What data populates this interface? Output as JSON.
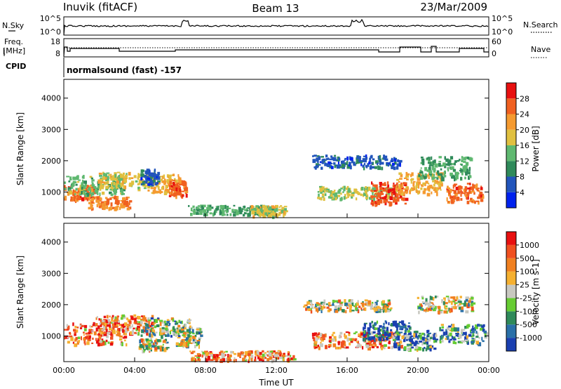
{
  "header": {
    "station": "Inuvik (fitACF)",
    "beam": "Beam 13",
    "date": "23/Mar/2009"
  },
  "top_panels": {
    "nsky_label": "N.Sky",
    "nsky_ticks": [
      "10^5",
      "10^0"
    ],
    "nsearch_label": "N.Search",
    "nsearch_ticks": [
      "10^5",
      "10^0"
    ],
    "freq_label_1": "Freq.",
    "freq_label_2": "[MHz]",
    "freq_ticks": [
      "18",
      "8"
    ],
    "nave_label": "Nave",
    "nave_ticks": [
      "60",
      "0"
    ],
    "cpid_label": "CPID",
    "cpid_text": "normalsound (fast) -157"
  },
  "chart_data": [
    {
      "type": "heatmap",
      "name": "power-panel",
      "xlabel": "",
      "ylabel": "Slant Range [km]",
      "x_ticks": [
        "00:00",
        "04:00",
        "08:00",
        "12:00",
        "16:00",
        "20:00",
        "00:00"
      ],
      "y_ticks": [
        1000,
        2000,
        3000,
        4000
      ],
      "ylim": [
        180,
        4600
      ],
      "colorbar": {
        "label": "Power [dB]",
        "ticks": [
          4,
          8,
          12,
          16,
          20,
          24,
          28
        ],
        "colors": [
          "#0022ee",
          "#2255bb",
          "#2f8a5a",
          "#5fb870",
          "#e0c040",
          "#f59a30",
          "#f06020",
          "#e81010"
        ]
      },
      "blobs": [
        {
          "t": 0.8,
          "r": 1000,
          "dt": 0.9,
          "dr": 250,
          "v": 26
        },
        {
          "t": 1.6,
          "r": 1250,
          "dt": 1.8,
          "dr": 300,
          "v": 14
        },
        {
          "t": 3.5,
          "r": 1400,
          "dt": 1.6,
          "dr": 250,
          "v": 18
        },
        {
          "t": 2.5,
          "r": 700,
          "dt": 1.2,
          "dr": 200,
          "v": 24
        },
        {
          "t": 5.6,
          "r": 1300,
          "dt": 0.9,
          "dr": 300,
          "v": 20
        },
        {
          "t": 6.4,
          "r": 1150,
          "dt": 0.5,
          "dr": 250,
          "v": 26
        },
        {
          "t": 4.8,
          "r": 1500,
          "dt": 0.5,
          "dr": 250,
          "v": 6
        },
        {
          "t": 9.5,
          "r": 450,
          "dt": 2.5,
          "dr": 150,
          "v": 12
        },
        {
          "t": 11.5,
          "r": 420,
          "dt": 1.0,
          "dr": 180,
          "v": 18
        },
        {
          "t": 16.5,
          "r": 2000,
          "dt": 2.5,
          "dr": 200,
          "v": 6
        },
        {
          "t": 16.5,
          "r": 1000,
          "dt": 2.2,
          "dr": 200,
          "v": 16
        },
        {
          "t": 18.3,
          "r": 1000,
          "dt": 1.0,
          "dr": 350,
          "v": 27
        },
        {
          "t": 20.0,
          "r": 1300,
          "dt": 1.3,
          "dr": 350,
          "v": 20
        },
        {
          "t": 22.6,
          "r": 1000,
          "dt": 1.0,
          "dr": 300,
          "v": 26
        },
        {
          "t": 21.5,
          "r": 1800,
          "dt": 1.5,
          "dr": 350,
          "v": 12
        }
      ]
    },
    {
      "type": "heatmap",
      "name": "velocity-panel",
      "xlabel": "Time UT",
      "ylabel": "Slant Range [km]",
      "x_ticks": [
        "00:00",
        "04:00",
        "08:00",
        "12:00",
        "16:00",
        "20:00",
        "00:00"
      ],
      "y_ticks": [
        1000,
        2000,
        3000,
        4000
      ],
      "ylim": [
        180,
        4600
      ],
      "colorbar": {
        "label": "Velocity [m s-1]",
        "ticks": [
          "1000",
          "500",
          "100",
          "25",
          "-25",
          "-100",
          "-500",
          "-1000"
        ],
        "colors": [
          "#1a3fb0",
          "#2a70a8",
          "#2f8a5a",
          "#66cc33",
          "#c8c8c0",
          "#f5b030",
          "#f08020",
          "#f05020",
          "#e81010"
        ]
      },
      "blobs": [
        {
          "t": 1.5,
          "r": 1100,
          "dt": 2.0,
          "dr": 350,
          "v": 6
        },
        {
          "t": 3.4,
          "r": 1400,
          "dt": 1.6,
          "dr": 300,
          "v": 6
        },
        {
          "t": 5.7,
          "r": 1300,
          "dt": 1.4,
          "dr": 300,
          "v": 3
        },
        {
          "t": 7.0,
          "r": 1000,
          "dt": 0.7,
          "dr": 300,
          "v": 3
        },
        {
          "t": 5.0,
          "r": 750,
          "dt": 0.8,
          "dr": 200,
          "v": 4
        },
        {
          "t": 10.0,
          "r": 400,
          "dt": 3.0,
          "dr": 150,
          "v": 6
        },
        {
          "t": 16.0,
          "r": 2000,
          "dt": 2.5,
          "dr": 180,
          "v": 4
        },
        {
          "t": 16.5,
          "r": 900,
          "dt": 2.5,
          "dr": 250,
          "v": 6
        },
        {
          "t": 18.2,
          "r": 1200,
          "dt": 1.4,
          "dr": 300,
          "v": 0
        },
        {
          "t": 19.8,
          "r": 900,
          "dt": 1.2,
          "dr": 300,
          "v": 2
        },
        {
          "t": 21.5,
          "r": 2050,
          "dt": 1.6,
          "dr": 250,
          "v": 4
        },
        {
          "t": 22.5,
          "r": 1100,
          "dt": 1.3,
          "dr": 300,
          "v": 2
        }
      ]
    }
  ]
}
